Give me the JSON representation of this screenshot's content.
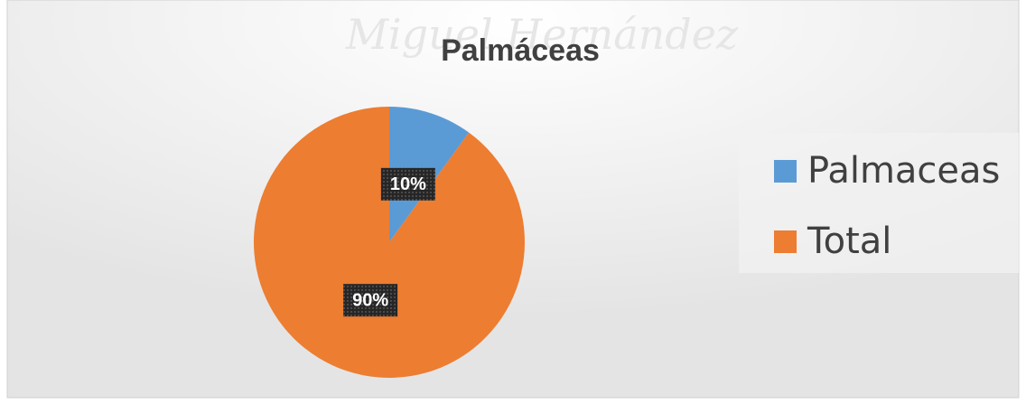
{
  "chart_data": {
    "type": "pie",
    "title": "Palmáceas",
    "watermark": "Miguel Hernández",
    "categories": [
      "Palmaceas",
      "Total"
    ],
    "values": [
      10,
      90
    ],
    "value_labels": [
      "10%",
      "90%"
    ],
    "colors": [
      "#5b9bd5",
      "#ed7d31"
    ],
    "legend": "right",
    "start_angle": 0,
    "direction": "clockwise"
  }
}
